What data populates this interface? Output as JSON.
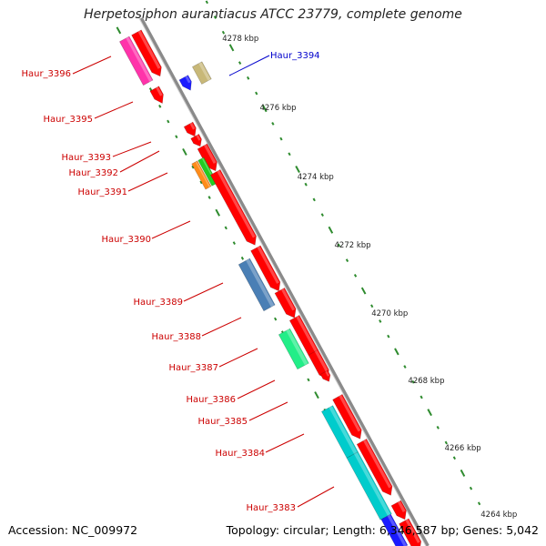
{
  "title": "Herpetosiphon aurantiacus ATCC 23779, complete genome",
  "footer": {
    "accession": "Accession: NC_009972",
    "stats": "Topology: circular; Length: 6,346,587 bp; Genes: 5,042"
  },
  "scale_labels": [
    "4278 kbp",
    "4276 kbp",
    "4274 kbp",
    "4272 kbp",
    "4270 kbp",
    "4268 kbp",
    "4266 kbp",
    "4264 kbp"
  ],
  "gene_labels": [
    {
      "id": "haur-3394",
      "text": "Haur_3394",
      "color": "#0000cc"
    },
    {
      "id": "haur-3396",
      "text": "Haur_3396",
      "color": "#cc0000"
    },
    {
      "id": "haur-3395",
      "text": "Haur_3395",
      "color": "#cc0000"
    },
    {
      "id": "haur-3393",
      "text": "Haur_3393",
      "color": "#cc0000"
    },
    {
      "id": "haur-3392",
      "text": "Haur_3392",
      "color": "#cc0000"
    },
    {
      "id": "haur-3391",
      "text": "Haur_3391",
      "color": "#cc0000"
    },
    {
      "id": "haur-3390",
      "text": "Haur_3390",
      "color": "#cc0000"
    },
    {
      "id": "haur-3389",
      "text": "Haur_3389",
      "color": "#cc0000"
    },
    {
      "id": "haur-3388",
      "text": "Haur_3388",
      "color": "#cc0000"
    },
    {
      "id": "haur-3387",
      "text": "Haur_3387",
      "color": "#cc0000"
    },
    {
      "id": "haur-3386",
      "text": "Haur_3386",
      "color": "#cc0000"
    },
    {
      "id": "haur-3385",
      "text": "Haur_3385",
      "color": "#cc0000"
    },
    {
      "id": "haur-3384",
      "text": "Haur_3384",
      "color": "#cc0000"
    },
    {
      "id": "haur-3383",
      "text": "Haur_3383",
      "color": "#cc0000"
    }
  ],
  "colors": {
    "backbone": "#8a8a8a",
    "tick_dots": "#2e8b2e",
    "red_gene": "#ff0000",
    "magenta_gene": "#ff33aa",
    "blue_gene": "#1a1aff",
    "khaki_gene": "#c8b878",
    "orange_gene": "#ff8c1a",
    "green_gene": "#22cc22",
    "steelblue_gene": "#4a7fb5",
    "springgreen_gene": "#22ee88",
    "cyan_gene": "#00cccc"
  }
}
